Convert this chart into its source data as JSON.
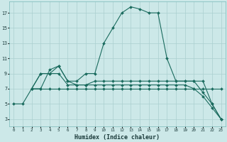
{
  "xlabel": "Humidex (Indice chaleur)",
  "bg_color": "#cce8e8",
  "line_color": "#1a6b5e",
  "grid_color": "#aacfcf",
  "xlim": [
    -0.5,
    23.5
  ],
  "ylim": [
    2,
    18.5
  ],
  "yticks": [
    3,
    5,
    7,
    9,
    11,
    13,
    15,
    17
  ],
  "xticks": [
    0,
    1,
    2,
    3,
    4,
    5,
    6,
    7,
    8,
    9,
    10,
    11,
    12,
    13,
    14,
    15,
    16,
    17,
    18,
    19,
    20,
    21,
    22,
    23
  ],
  "lines": [
    {
      "x": [
        0,
        1,
        2,
        3,
        4,
        5,
        6,
        7,
        8,
        9,
        10,
        11,
        12,
        13,
        14,
        15,
        16,
        17,
        18,
        19,
        20,
        21,
        22,
        23
      ],
      "y": [
        5,
        5,
        7,
        9,
        9,
        10,
        8,
        8,
        9,
        9,
        13,
        15,
        17,
        17.8,
        17.5,
        17,
        17,
        11,
        8,
        8,
        8,
        8,
        5,
        3
      ]
    },
    {
      "x": [
        2,
        3,
        4,
        5,
        6,
        7,
        8,
        9,
        10,
        11,
        12,
        13,
        14,
        15,
        16,
        17,
        18,
        19,
        20,
        21,
        22,
        23
      ],
      "y": [
        7,
        9,
        9,
        9,
        7.5,
        7.5,
        7.5,
        8,
        8,
        8,
        8,
        8,
        8,
        8,
        8,
        8,
        8,
        8,
        8,
        6.5,
        5,
        3
      ]
    },
    {
      "x": [
        2,
        3,
        4,
        5,
        6,
        7,
        8,
        9,
        10,
        11,
        12,
        13,
        14,
        15,
        16,
        17,
        18,
        19,
        20,
        21,
        22,
        23
      ],
      "y": [
        7,
        7,
        9.5,
        10,
        8,
        7.5,
        7.5,
        7.5,
        7.5,
        7.5,
        7.5,
        7.5,
        7.5,
        7.5,
        7.5,
        7.5,
        7.5,
        7.5,
        7,
        6,
        4.5,
        3
      ]
    },
    {
      "x": [
        2,
        3,
        4,
        5,
        6,
        7,
        8,
        9,
        10,
        11,
        12,
        13,
        14,
        15,
        16,
        17,
        18,
        19,
        20,
        21,
        22,
        23
      ],
      "y": [
        7,
        7,
        7,
        7,
        7,
        7,
        7,
        7,
        7,
        7,
        7,
        7,
        7,
        7,
        7,
        7,
        7,
        7,
        7,
        7,
        7,
        7
      ]
    }
  ]
}
